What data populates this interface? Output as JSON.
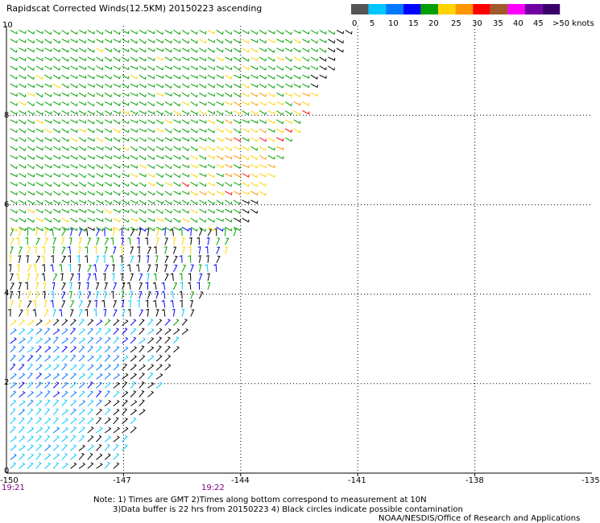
{
  "title": "Rapidscat Corrected Winds(12.5KM) 20150223 ascending",
  "legend": {
    "labels": [
      "0",
      "5",
      "10",
      "15",
      "20",
      "25",
      "30",
      "35",
      "40",
      "45",
      ">50 knots"
    ],
    "colors": [
      "#555555",
      "#00c8ff",
      "#0078ff",
      "#0000ff",
      "#00a000",
      "#ffd400",
      "#ff9600",
      "#ff0000",
      "#a05a2c",
      "#ff00ff",
      "#7000a0",
      "#3a006a"
    ]
  },
  "axes": {
    "x_ticks": [
      "-150",
      "-147",
      "-144",
      "-141",
      "-138",
      "-135"
    ],
    "y_ticks": [
      "0",
      "2",
      "4",
      "6",
      "8",
      "10"
    ],
    "x_range": [
      -150,
      -135
    ],
    "y_range": [
      0,
      10
    ]
  },
  "times": [
    "19:21",
    "19:22"
  ],
  "notes": {
    "line1": "Note: 1) Times are GMT 2)Times along bottom correspond to measurement at 10N",
    "line2": "3)Data buffer is 22 hrs from 20150223 4) Black circles indicate possible contamination",
    "line3": "NOAA/NESDIS/Office of Research and Applications"
  }
}
